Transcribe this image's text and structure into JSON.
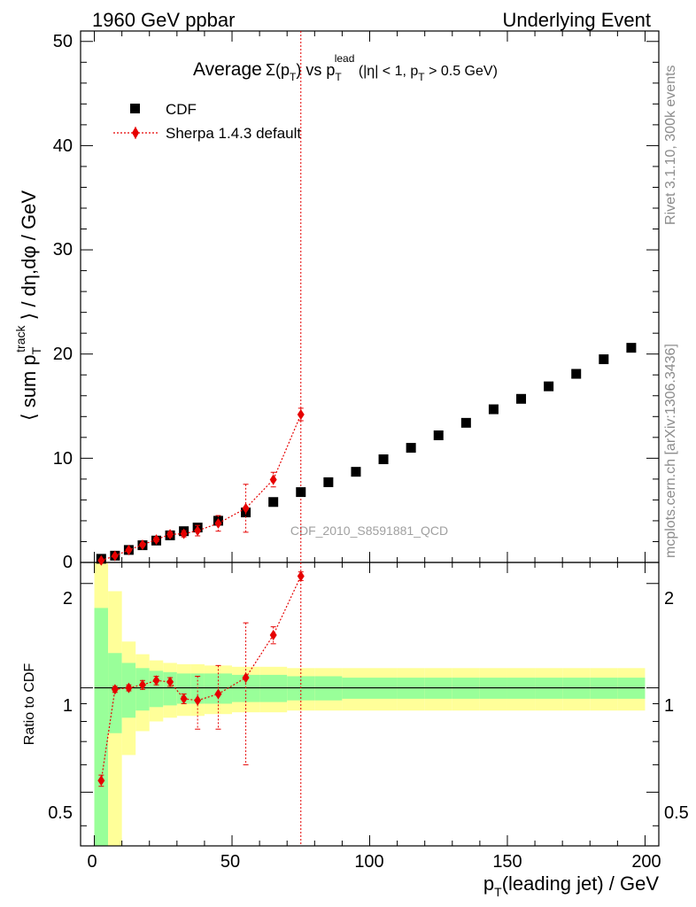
{
  "header": {
    "left": "1960 GeV ppbar",
    "right": "Underlying Event"
  },
  "title": {
    "prefix": "Average",
    "sigma": "Σ(p",
    "sub_t": "T",
    "mid": ") vs p",
    "sup_lead": "lead",
    "sub_t2": "T",
    "suffix": " (|η| < 1, p",
    "sub_t3": "T",
    "tail": " > 0.5 GeV)"
  },
  "side_labels": {
    "rivet": "Rivet 3.1.10,  300k events",
    "mcplots": "mcplots.cern.ch [arXiv:1306.3436]"
  },
  "watermark": "CDF_2010_S8591881_QCD",
  "axes": {
    "ylabel_main": {
      "part1": "⟨ sum p",
      "sup": "track",
      "sub": "T",
      "part2": " ⟩ / dη,dφ / GeV"
    },
    "ylabel_ratio": "Ratio to CDF",
    "xlabel": {
      "p": "p",
      "sub": "T",
      "rest": "(leading jet) / GeV"
    },
    "xlim": [
      -5,
      205
    ],
    "ylim_main": [
      0,
      51
    ],
    "ylim_ratio": [
      0.35,
      2.3
    ],
    "x_ticks": [
      "0",
      "50",
      "100",
      "150",
      "200"
    ],
    "y_ticks_main": [
      "0",
      "10",
      "20",
      "30",
      "40",
      "50"
    ],
    "y_ticks_ratio": [
      "0.5",
      "1",
      "2"
    ]
  },
  "legend": {
    "cdf": "CDF",
    "sherpa": "Sherpa 1.4.3 default",
    "placement": "top-left"
  },
  "colors": {
    "data": "#000000",
    "mc": "#e60000",
    "band_inner": "#99ff99",
    "band_outer": "#ffff99"
  },
  "chart_data": {
    "type": "scatter",
    "x": [
      2.5,
      7.5,
      12.5,
      17.5,
      22.5,
      27.5,
      32.5,
      37.5,
      45,
      55,
      65,
      75,
      85,
      95,
      105,
      115,
      125,
      135,
      145,
      155,
      165,
      175,
      185,
      195
    ],
    "series": [
      {
        "name": "CDF",
        "values": [
          0.35,
          0.65,
          1.2,
          1.65,
          2.1,
          2.6,
          3.0,
          3.35,
          4.0,
          4.8,
          5.8,
          6.75,
          7.7,
          8.7,
          9.9,
          11.0,
          12.2,
          13.4,
          14.7,
          15.7,
          16.9,
          18.1,
          19.5,
          20.6
        ]
      },
      {
        "name": "Sherpa 1.4.3 default",
        "values": [
          0.19,
          0.64,
          1.19,
          1.7,
          2.2,
          2.7,
          2.75,
          3.05,
          3.75,
          5.2,
          7.95,
          14.2
        ],
        "err": [
          0.05,
          0.08,
          0.1,
          0.15,
          0.2,
          0.25,
          0.3,
          0.5,
          0.75,
          2.3,
          0.7,
          0.6
        ]
      }
    ],
    "ratio": {
      "x": [
        2.5,
        7.5,
        12.5,
        17.5,
        22.5,
        27.5,
        32.5,
        37.5,
        45,
        55,
        65,
        75
      ],
      "values": [
        0.54,
        0.99,
        1.0,
        1.02,
        1.05,
        1.04,
        0.93,
        0.92,
        0.96,
        1.07,
        1.42,
        2.1
      ],
      "err": [
        0.02,
        0.02,
        0.02,
        0.03,
        0.03,
        0.03,
        0.03,
        0.16,
        0.2,
        0.47,
        0.08,
        0.06
      ],
      "band_edges": [
        0,
        5,
        10,
        15,
        20,
        25,
        30,
        35,
        40,
        50,
        60,
        70,
        80,
        90,
        100,
        110,
        120,
        130,
        140,
        150,
        160,
        170,
        180,
        190,
        200
      ],
      "band_inner": [
        0.7,
        0.26,
        0.18,
        0.14,
        0.12,
        0.11,
        0.1,
        0.1,
        0.1,
        0.09,
        0.09,
        0.08,
        0.08,
        0.07,
        0.07,
        0.07,
        0.07,
        0.07,
        0.07,
        0.07,
        0.07,
        0.07,
        0.07,
        0.07
      ],
      "band_outer": [
        1.4,
        0.9,
        0.36,
        0.25,
        0.2,
        0.18,
        0.17,
        0.17,
        0.16,
        0.15,
        0.15,
        0.14,
        0.14,
        0.14,
        0.14,
        0.14,
        0.14,
        0.14,
        0.14,
        0.14,
        0.14,
        0.14,
        0.14,
        0.14
      ]
    },
    "vertical_line_x": 75,
    "grid": false
  }
}
